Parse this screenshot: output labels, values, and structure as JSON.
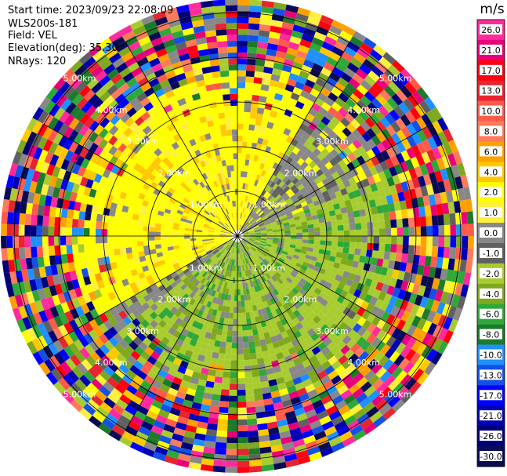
{
  "header": {
    "start_time": "Start time: 2023/09/23 22:08:09",
    "instrument": "WLS200s-181",
    "field": "Field: VEL",
    "elevation": "Elevation(deg): 35.30",
    "nrays": "NRays: 120"
  },
  "chart_data": {
    "type": "heatmap",
    "projection": "polar-ppi",
    "field": "VEL",
    "units": "m/s",
    "nrays": 120,
    "elevation_deg": 35.3,
    "range_rings_km": [
      1,
      2,
      3,
      4,
      5
    ],
    "range_ring_labels": [
      "1.00km",
      "2.00km",
      "3.00km",
      "4.00km",
      "5.00km"
    ],
    "max_range_km": 5.3,
    "spokes_deg": [
      0,
      30,
      60,
      90,
      120,
      150,
      180,
      210,
      240,
      270,
      300,
      330
    ],
    "colorbar": {
      "label": "m/s",
      "ticks": [
        "26.0",
        "21.0",
        "17.0",
        "13.0",
        "10.0",
        "8.0",
        "6.0",
        "4.0",
        "2.0",
        "1.0",
        "0.0",
        "-1.0",
        "-2.0",
        "-4.0",
        "-6.0",
        "-8.0",
        "-10.0",
        "-13.0",
        "-17.0",
        "-21.0",
        "-26.0",
        "-30.0"
      ],
      "colors": [
        "#ff2a9c",
        "#e8007a",
        "#ff0010",
        "#e8242e",
        "#ff5a4a",
        "#ff7a5a",
        "#ffa000",
        "#ffc800",
        "#ffff00",
        "#fff040",
        "#888888",
        "#606060",
        "#a8cc30",
        "#7ea81e",
        "#2ea838",
        "#1c7a2a",
        "#1e90ff",
        "#1450e6",
        "#0000ff",
        "#0000b4",
        "#000078",
        "#0a0a55"
      ]
    },
    "wind_pattern": {
      "inner_range_km": 2.85,
      "positive_sector_center_deg": 315,
      "negative_sector_center_deg": 150,
      "noise_start_km": 3.7
    }
  }
}
